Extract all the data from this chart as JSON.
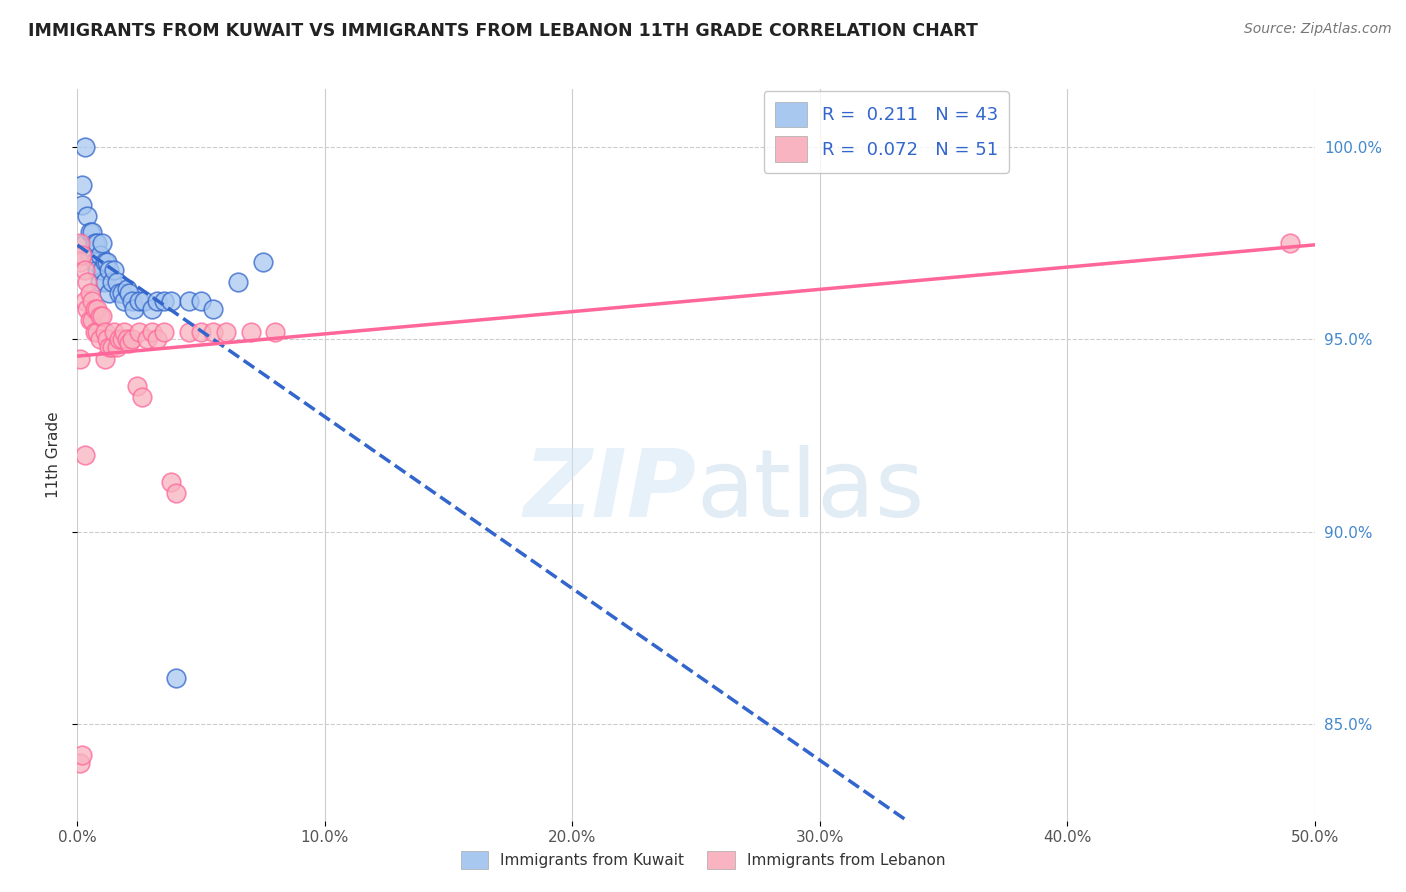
{
  "title": "IMMIGRANTS FROM KUWAIT VS IMMIGRANTS FROM LEBANON 11TH GRADE CORRELATION CHART",
  "source": "Source: ZipAtlas.com",
  "ylabel": "11th Grade",
  "xlim": [
    0.0,
    0.5
  ],
  "ylim": [
    0.825,
    1.015
  ],
  "xtick_labels": [
    "0.0%",
    "10.0%",
    "20.0%",
    "30.0%",
    "40.0%",
    "50.0%"
  ],
  "xtick_vals": [
    0.0,
    0.1,
    0.2,
    0.3,
    0.4,
    0.5
  ],
  "ytick_labels": [
    "85.0%",
    "90.0%",
    "95.0%",
    "100.0%"
  ],
  "ytick_vals": [
    0.85,
    0.9,
    0.95,
    1.0
  ],
  "R_kuwait": 0.211,
  "N_kuwait": 43,
  "R_lebanon": 0.072,
  "N_lebanon": 51,
  "color_kuwait": "#A8C8F0",
  "color_lebanon": "#F8B4C0",
  "line_color_kuwait": "#3366CC",
  "line_color_lebanon": "#FF6699",
  "kuwait_x": [
    0.002,
    0.002,
    0.003,
    0.004,
    0.005,
    0.005,
    0.006,
    0.007,
    0.007,
    0.008,
    0.008,
    0.009,
    0.009,
    0.01,
    0.01,
    0.011,
    0.011,
    0.012,
    0.013,
    0.013,
    0.014,
    0.015,
    0.016,
    0.017,
    0.018,
    0.019,
    0.02,
    0.021,
    0.022,
    0.023,
    0.025,
    0.027,
    0.03,
    0.032,
    0.035,
    0.038,
    0.04,
    0.045,
    0.05,
    0.055,
    0.065,
    0.075,
    0.003
  ],
  "kuwait_y": [
    0.99,
    0.985,
    0.975,
    0.982,
    0.978,
    0.972,
    0.978,
    0.975,
    0.97,
    0.968,
    0.975,
    0.972,
    0.965,
    0.975,
    0.968,
    0.97,
    0.965,
    0.97,
    0.968,
    0.962,
    0.965,
    0.968,
    0.965,
    0.962,
    0.962,
    0.96,
    0.963,
    0.962,
    0.96,
    0.958,
    0.96,
    0.96,
    0.958,
    0.96,
    0.96,
    0.96,
    0.862,
    0.96,
    0.96,
    0.958,
    0.965,
    0.97,
    1.0
  ],
  "lebanon_x": [
    0.001,
    0.001,
    0.002,
    0.003,
    0.003,
    0.004,
    0.004,
    0.005,
    0.005,
    0.006,
    0.006,
    0.007,
    0.007,
    0.008,
    0.008,
    0.009,
    0.009,
    0.01,
    0.011,
    0.011,
    0.012,
    0.013,
    0.014,
    0.015,
    0.016,
    0.017,
    0.018,
    0.019,
    0.02,
    0.021,
    0.022,
    0.025,
    0.028,
    0.03,
    0.032,
    0.035,
    0.038,
    0.04,
    0.045,
    0.05,
    0.055,
    0.06,
    0.07,
    0.08,
    0.024,
    0.026,
    0.003,
    0.001,
    0.001,
    0.002,
    0.49
  ],
  "lebanon_y": [
    0.975,
    0.97,
    0.972,
    0.968,
    0.96,
    0.965,
    0.958,
    0.962,
    0.955,
    0.96,
    0.955,
    0.958,
    0.952,
    0.958,
    0.952,
    0.956,
    0.95,
    0.956,
    0.952,
    0.945,
    0.95,
    0.948,
    0.948,
    0.952,
    0.948,
    0.95,
    0.95,
    0.952,
    0.95,
    0.949,
    0.95,
    0.952,
    0.95,
    0.952,
    0.95,
    0.952,
    0.913,
    0.91,
    0.952,
    0.952,
    0.952,
    0.952,
    0.952,
    0.952,
    0.938,
    0.935,
    0.92,
    0.945,
    0.84,
    0.842,
    0.975
  ]
}
